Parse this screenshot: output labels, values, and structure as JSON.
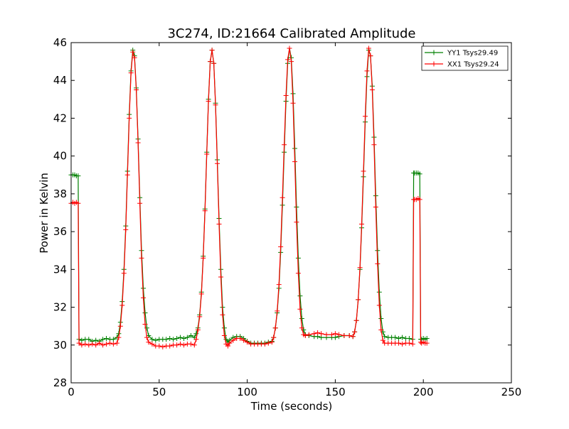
{
  "chart_data": {
    "type": "line",
    "title": "3C274, ID:21664 Calibrated Amplitude",
    "xlabel": "Time (seconds)",
    "ylabel": "Power in Kelvin",
    "xlim": [
      0,
      250
    ],
    "ylim": [
      28,
      46
    ],
    "xticks": [
      0,
      50,
      100,
      150,
      200,
      250
    ],
    "yticks": [
      28,
      30,
      32,
      34,
      36,
      38,
      40,
      42,
      44,
      46
    ],
    "xtick_labels": [
      "0",
      "50",
      "100",
      "150",
      "200",
      "250"
    ],
    "ytick_labels": [
      "28",
      "30",
      "32",
      "34",
      "36",
      "38",
      "40",
      "42",
      "44",
      "46"
    ],
    "grid": false,
    "legend": {
      "position": "top-right"
    },
    "marker": "+",
    "series": [
      {
        "name": "YY1 Tsys29.49",
        "color": "#008000",
        "points": [
          [
            0,
            39.0
          ],
          [
            1,
            39.0
          ],
          [
            2,
            39.0
          ],
          [
            3,
            38.95
          ],
          [
            4,
            38.95
          ],
          [
            4.5,
            30.3
          ],
          [
            6,
            30.25
          ],
          [
            8,
            30.3
          ],
          [
            10,
            30.3
          ],
          [
            12,
            30.2
          ],
          [
            14,
            30.25
          ],
          [
            16,
            30.2
          ],
          [
            18,
            30.3
          ],
          [
            20,
            30.35
          ],
          [
            22,
            30.3
          ],
          [
            24,
            30.3
          ],
          [
            26,
            30.4
          ],
          [
            27,
            30.6
          ],
          [
            28,
            31.2
          ],
          [
            29,
            32.3
          ],
          [
            30,
            34.0
          ],
          [
            31,
            36.3
          ],
          [
            32,
            39.2
          ],
          [
            33,
            42.2
          ],
          [
            34,
            44.5
          ],
          [
            35,
            45.6
          ],
          [
            36,
            45.3
          ],
          [
            37,
            43.6
          ],
          [
            38,
            40.9
          ],
          [
            39,
            37.8
          ],
          [
            40,
            35.0
          ],
          [
            41,
            33.0
          ],
          [
            42,
            31.7
          ],
          [
            43,
            30.9
          ],
          [
            44,
            30.5
          ],
          [
            46,
            30.3
          ],
          [
            48,
            30.25
          ],
          [
            50,
            30.3
          ],
          [
            52,
            30.3
          ],
          [
            54,
            30.3
          ],
          [
            56,
            30.35
          ],
          [
            58,
            30.3
          ],
          [
            60,
            30.35
          ],
          [
            62,
            30.4
          ],
          [
            64,
            30.35
          ],
          [
            66,
            30.4
          ],
          [
            68,
            30.5
          ],
          [
            70,
            30.4
          ],
          [
            71,
            30.6
          ],
          [
            72,
            30.9
          ],
          [
            73,
            31.6
          ],
          [
            74,
            32.8
          ],
          [
            75,
            34.7
          ],
          [
            76,
            37.2
          ],
          [
            77,
            40.2
          ],
          [
            78,
            43.0
          ],
          [
            79,
            45.0
          ],
          [
            80,
            45.6
          ],
          [
            81,
            44.9
          ],
          [
            82,
            42.8
          ],
          [
            83,
            39.8
          ],
          [
            84,
            36.7
          ],
          [
            85,
            34.0
          ],
          [
            86,
            32.0
          ],
          [
            87,
            30.9
          ],
          [
            88,
            30.3
          ],
          [
            89,
            30.15
          ],
          [
            90,
            30.25
          ],
          [
            92,
            30.4
          ],
          [
            94,
            30.45
          ],
          [
            96,
            30.45
          ],
          [
            98,
            30.35
          ],
          [
            100,
            30.2
          ],
          [
            102,
            30.1
          ],
          [
            104,
            30.1
          ],
          [
            106,
            30.1
          ],
          [
            108,
            30.1
          ],
          [
            110,
            30.1
          ],
          [
            112,
            30.15
          ],
          [
            114,
            30.2
          ],
          [
            115,
            30.4
          ],
          [
            116,
            30.9
          ],
          [
            117,
            31.7
          ],
          [
            118,
            33.0
          ],
          [
            119,
            34.9
          ],
          [
            120,
            37.4
          ],
          [
            121,
            40.2
          ],
          [
            122,
            42.9
          ],
          [
            123,
            44.9
          ],
          [
            124,
            45.7
          ],
          [
            125,
            45.2
          ],
          [
            126,
            43.3
          ],
          [
            127,
            40.4
          ],
          [
            128,
            37.3
          ],
          [
            129,
            34.6
          ],
          [
            130,
            32.6
          ],
          [
            131,
            31.4
          ],
          [
            132,
            30.8
          ],
          [
            133,
            30.55
          ],
          [
            135,
            30.5
          ],
          [
            138,
            30.45
          ],
          [
            140,
            30.45
          ],
          [
            142,
            30.4
          ],
          [
            145,
            30.4
          ],
          [
            148,
            30.4
          ],
          [
            150,
            30.4
          ],
          [
            152,
            30.45
          ],
          [
            155,
            30.5
          ],
          [
            158,
            30.5
          ],
          [
            160,
            30.45
          ],
          [
            161,
            30.7
          ],
          [
            162,
            31.3
          ],
          [
            163,
            32.4
          ],
          [
            164,
            34.0
          ],
          [
            165,
            36.2
          ],
          [
            166,
            38.9
          ],
          [
            167,
            41.8
          ],
          [
            168,
            44.2
          ],
          [
            169,
            45.6
          ],
          [
            170,
            45.3
          ],
          [
            171,
            43.7
          ],
          [
            172,
            41.0
          ],
          [
            173,
            37.9
          ],
          [
            174,
            35.0
          ],
          [
            175,
            32.8
          ],
          [
            176,
            31.4
          ],
          [
            177,
            30.7
          ],
          [
            178,
            30.45
          ],
          [
            180,
            30.4
          ],
          [
            182,
            30.4
          ],
          [
            184,
            30.4
          ],
          [
            186,
            30.35
          ],
          [
            188,
            30.4
          ],
          [
            190,
            30.35
          ],
          [
            192,
            30.35
          ],
          [
            194,
            30.3
          ],
          [
            194.5,
            39.1
          ],
          [
            195,
            39.1
          ],
          [
            196,
            39.1
          ],
          [
            197,
            39.1
          ],
          [
            198,
            39.05
          ],
          [
            198.5,
            30.3
          ],
          [
            199,
            30.3
          ],
          [
            200,
            30.35
          ],
          [
            201,
            30.3
          ],
          [
            202,
            30.35
          ]
        ]
      },
      {
        "name": "XX1 Tsys29.24",
        "color": "#ff0000",
        "points": [
          [
            0,
            37.5
          ],
          [
            1,
            37.55
          ],
          [
            2,
            37.5
          ],
          [
            3,
            37.55
          ],
          [
            4,
            37.5
          ],
          [
            4.5,
            30.1
          ],
          [
            6,
            30.0
          ],
          [
            8,
            30.05
          ],
          [
            10,
            30.0
          ],
          [
            12,
            30.05
          ],
          [
            14,
            30.0
          ],
          [
            16,
            30.1
          ],
          [
            18,
            30.0
          ],
          [
            20,
            30.05
          ],
          [
            22,
            30.1
          ],
          [
            24,
            30.05
          ],
          [
            26,
            30.1
          ],
          [
            27,
            30.4
          ],
          [
            28,
            31.0
          ],
          [
            29,
            32.1
          ],
          [
            30,
            33.8
          ],
          [
            31,
            36.1
          ],
          [
            32,
            39.0
          ],
          [
            33,
            42.0
          ],
          [
            34,
            44.4
          ],
          [
            35,
            45.5
          ],
          [
            36,
            45.2
          ],
          [
            37,
            43.5
          ],
          [
            38,
            40.7
          ],
          [
            39,
            37.5
          ],
          [
            40,
            34.6
          ],
          [
            41,
            32.5
          ],
          [
            42,
            31.1
          ],
          [
            43,
            30.4
          ],
          [
            44,
            30.15
          ],
          [
            46,
            30.05
          ],
          [
            48,
            29.95
          ],
          [
            50,
            29.95
          ],
          [
            52,
            29.9
          ],
          [
            54,
            29.95
          ],
          [
            56,
            29.95
          ],
          [
            58,
            30.0
          ],
          [
            60,
            30.0
          ],
          [
            62,
            30.05
          ],
          [
            64,
            30.0
          ],
          [
            66,
            30.05
          ],
          [
            68,
            30.05
          ],
          [
            70,
            30.0
          ],
          [
            71,
            30.3
          ],
          [
            72,
            30.8
          ],
          [
            73,
            31.5
          ],
          [
            74,
            32.7
          ],
          [
            75,
            34.6
          ],
          [
            76,
            37.1
          ],
          [
            77,
            40.1
          ],
          [
            78,
            42.9
          ],
          [
            79,
            45.0
          ],
          [
            80,
            45.6
          ],
          [
            81,
            44.9
          ],
          [
            82,
            42.7
          ],
          [
            83,
            39.6
          ],
          [
            84,
            36.4
          ],
          [
            85,
            33.6
          ],
          [
            86,
            31.6
          ],
          [
            87,
            30.5
          ],
          [
            88,
            30.05
          ],
          [
            89,
            29.95
          ],
          [
            90,
            30.1
          ],
          [
            92,
            30.25
          ],
          [
            94,
            30.35
          ],
          [
            96,
            30.35
          ],
          [
            98,
            30.25
          ],
          [
            100,
            30.15
          ],
          [
            102,
            30.05
          ],
          [
            104,
            30.05
          ],
          [
            106,
            30.05
          ],
          [
            108,
            30.05
          ],
          [
            110,
            30.05
          ],
          [
            112,
            30.1
          ],
          [
            114,
            30.15
          ],
          [
            115,
            30.4
          ],
          [
            116,
            30.9
          ],
          [
            117,
            31.8
          ],
          [
            118,
            33.2
          ],
          [
            119,
            35.2
          ],
          [
            120,
            37.8
          ],
          [
            121,
            40.6
          ],
          [
            122,
            43.2
          ],
          [
            123,
            45.1
          ],
          [
            124,
            45.7
          ],
          [
            125,
            45.0
          ],
          [
            126,
            42.8
          ],
          [
            127,
            39.7
          ],
          [
            128,
            36.5
          ],
          [
            129,
            33.8
          ],
          [
            130,
            31.9
          ],
          [
            131,
            30.9
          ],
          [
            132,
            30.55
          ],
          [
            133,
            30.5
          ],
          [
            135,
            30.55
          ],
          [
            138,
            30.6
          ],
          [
            140,
            30.65
          ],
          [
            142,
            30.6
          ],
          [
            145,
            30.55
          ],
          [
            148,
            30.55
          ],
          [
            150,
            30.6
          ],
          [
            152,
            30.55
          ],
          [
            155,
            30.5
          ],
          [
            158,
            30.5
          ],
          [
            160,
            30.45
          ],
          [
            161,
            30.7
          ],
          [
            162,
            31.3
          ],
          [
            163,
            32.4
          ],
          [
            164,
            34.1
          ],
          [
            165,
            36.4
          ],
          [
            166,
            39.2
          ],
          [
            167,
            42.1
          ],
          [
            168,
            44.5
          ],
          [
            169,
            45.7
          ],
          [
            170,
            45.3
          ],
          [
            171,
            43.5
          ],
          [
            172,
            40.6
          ],
          [
            173,
            37.3
          ],
          [
            174,
            34.3
          ],
          [
            175,
            32.1
          ],
          [
            176,
            30.8
          ],
          [
            177,
            30.25
          ],
          [
            178,
            30.1
          ],
          [
            180,
            30.1
          ],
          [
            182,
            30.1
          ],
          [
            184,
            30.1
          ],
          [
            186,
            30.1
          ],
          [
            188,
            30.05
          ],
          [
            190,
            30.1
          ],
          [
            192,
            30.1
          ],
          [
            194,
            30.05
          ],
          [
            194.5,
            37.7
          ],
          [
            195,
            37.7
          ],
          [
            196,
            37.7
          ],
          [
            197,
            37.75
          ],
          [
            198,
            37.7
          ],
          [
            198.5,
            30.15
          ],
          [
            199,
            30.1
          ],
          [
            200,
            30.15
          ],
          [
            201,
            30.1
          ],
          [
            202,
            30.1
          ]
        ]
      }
    ]
  }
}
